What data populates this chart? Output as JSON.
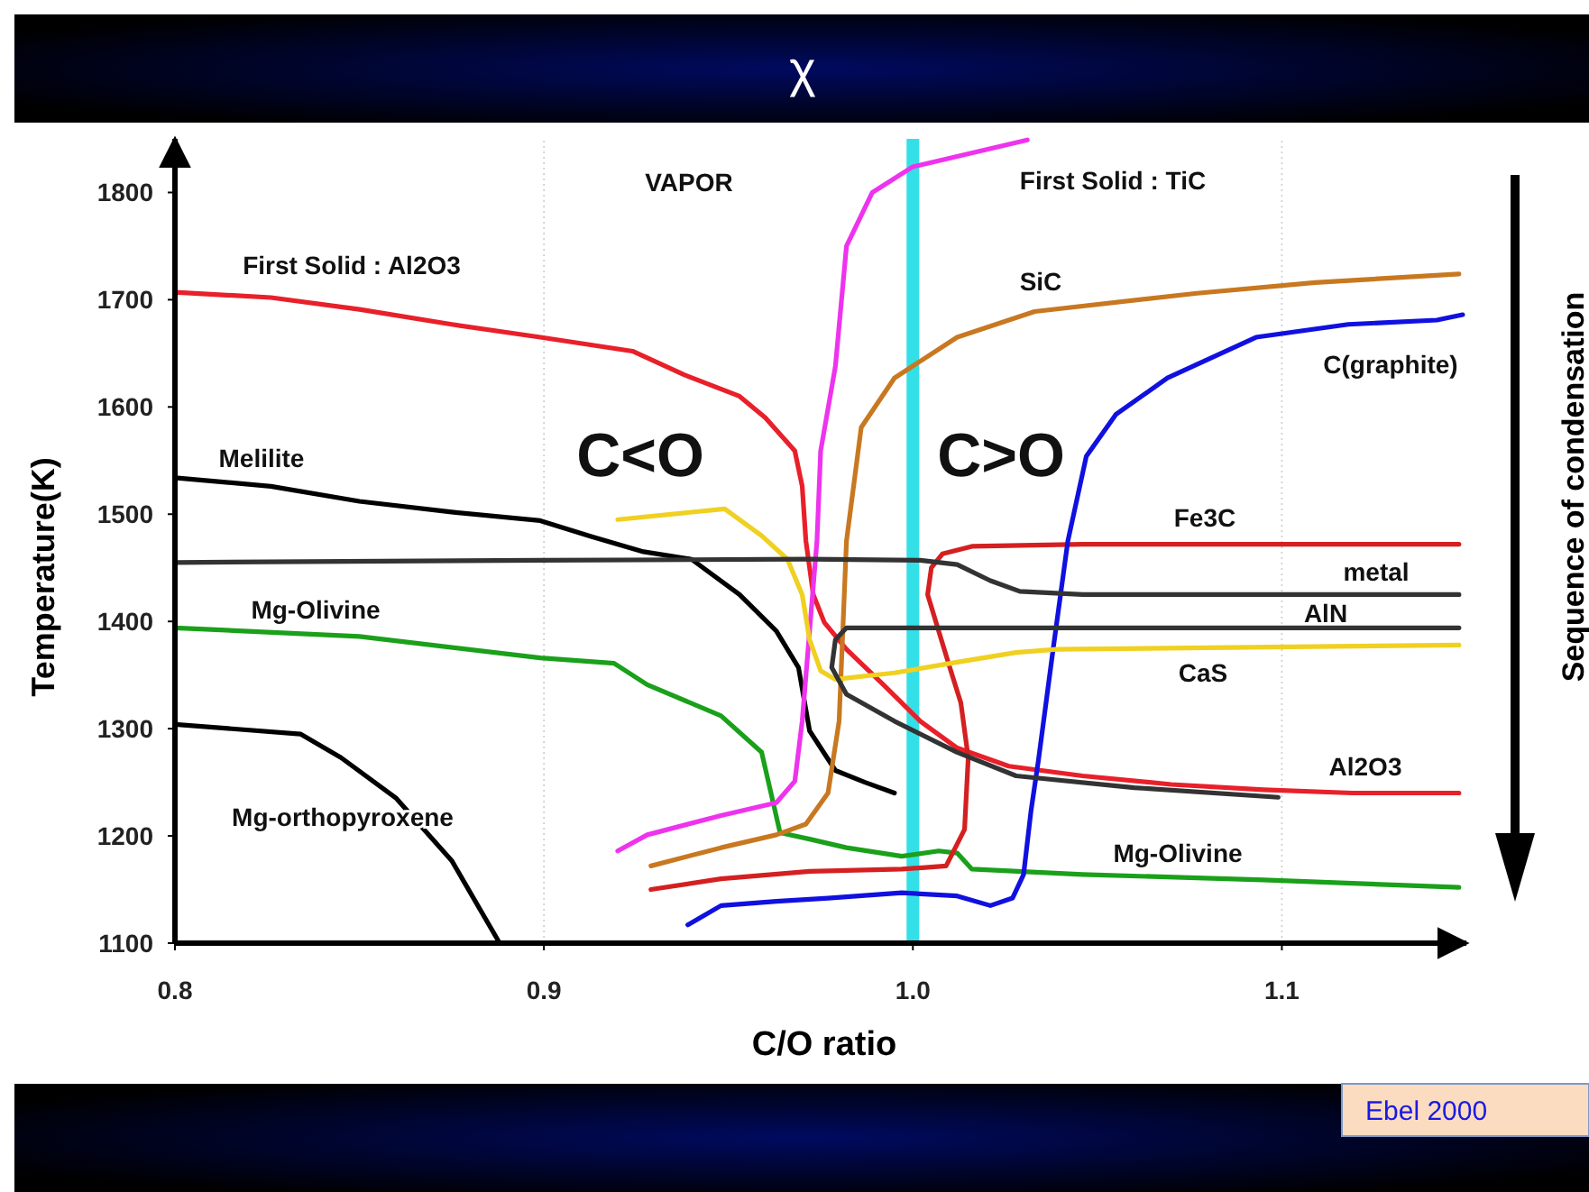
{
  "chart_data": {
    "type": "line",
    "title": "χ",
    "xlabel": "C/O ratio",
    "ylabel": "Temperature(K)",
    "xlim": [
      0.8,
      1.15
    ],
    "ylim": [
      1100,
      1850
    ],
    "xticks": [
      0.8,
      0.9,
      {
        "value": 1.0,
        "label": "1.0"
      },
      1.1
    ],
    "yticks": [
      1100,
      1200,
      1300,
      1400,
      1500,
      1600,
      1700,
      1800
    ],
    "grid": "x",
    "ref_lines": [
      {
        "axis": "x",
        "value": 1.0,
        "color": "#33e0e8"
      }
    ],
    "series": [
      {
        "color": "#e8202a",
        "x": [
          0.8,
          0.826,
          0.85,
          0.875,
          0.899,
          0.924,
          0.938,
          0.953,
          0.96,
          0.968,
          0.97,
          0.971,
          0.973,
          0.976,
          0.982,
          0.992,
          1.002,
          1.012,
          1.026,
          1.046,
          1.07,
          1.095,
          1.119,
          1.148
        ],
        "values": [
          1707,
          1702,
          1691,
          1677,
          1665,
          1652,
          1630,
          1610,
          1590,
          1559,
          1526,
          1475,
          1425,
          1399,
          1374,
          1341,
          1307,
          1282,
          1265,
          1256,
          1248,
          1243,
          1240,
          1240
        ]
      },
      {
        "color": "#000000",
        "x": [
          0.8,
          0.826,
          0.85,
          0.875,
          0.899,
          0.913,
          0.927,
          0.94,
          0.953,
          0.963,
          0.969,
          0.972,
          0.979,
          0.987,
          0.995
        ],
        "values": [
          1534,
          1526,
          1512,
          1502,
          1494,
          1479,
          1465,
          1458,
          1425,
          1391,
          1357,
          1298,
          1261,
          1250,
          1240
        ]
      },
      {
        "color": "#1aa01a",
        "x": [
          0.8,
          0.85,
          0.899,
          0.919,
          0.928,
          0.948,
          0.959,
          0.964,
          0.972,
          0.982,
          0.997,
          1.007,
          1.012,
          1.016,
          1.046,
          1.095,
          1.148
        ],
        "values": [
          1394,
          1386,
          1366,
          1361,
          1341,
          1312,
          1278,
          1203,
          1197,
          1189,
          1181,
          1186,
          1184,
          1169,
          1164,
          1159,
          1152
        ]
      },
      {
        "color": "#000000",
        "x": [
          0.8,
          0.834,
          0.845,
          0.86,
          0.875,
          0.888
        ],
        "values": [
          1304,
          1295,
          1273,
          1235,
          1177,
          1100
        ]
      },
      {
        "color": "#ee33ee",
        "x": [
          0.92,
          0.928,
          0.948,
          0.963,
          0.968,
          0.97,
          0.972,
          0.974,
          0.975,
          0.979,
          0.982,
          0.989,
          1.0,
          1.031
        ],
        "values": [
          1186,
          1201,
          1219,
          1231,
          1251,
          1307,
          1391,
          1475,
          1559,
          1638,
          1750,
          1800,
          1824,
          1849
        ]
      },
      {
        "color": "#c87820",
        "x": [
          0.929,
          0.948,
          0.963,
          0.971,
          0.977,
          0.98,
          0.981,
          0.982,
          0.986,
          0.995,
          1.012,
          1.033,
          1.077,
          1.109,
          1.148
        ],
        "values": [
          1172,
          1189,
          1201,
          1211,
          1240,
          1307,
          1391,
          1475,
          1581,
          1627,
          1665,
          1689,
          1706,
          1716,
          1724
        ]
      },
      {
        "color": "#d42020",
        "x": [
          0.929,
          0.948,
          0.972,
          0.997,
          1.009,
          1.014,
          1.015,
          1.013,
          1.01,
          1.007,
          1.004,
          1.005,
          1.008,
          1.016,
          1.046,
          1.148
        ],
        "values": [
          1150,
          1160,
          1167,
          1169,
          1172,
          1206,
          1273,
          1324,
          1357,
          1391,
          1425,
          1450,
          1463,
          1470,
          1472,
          1472
        ]
      },
      {
        "color": "#1010e0",
        "x": [
          0.939,
          0.948,
          0.963,
          0.977,
          0.997,
          1.012,
          1.021,
          1.027,
          1.03,
          1.032,
          1.034,
          1.038,
          1.042,
          1.047,
          1.055,
          1.069,
          1.093,
          1.118,
          1.142,
          1.149
        ],
        "values": [
          1117,
          1135,
          1139,
          1142,
          1147,
          1144,
          1135,
          1142,
          1164,
          1223,
          1270,
          1374,
          1475,
          1554,
          1593,
          1627,
          1665,
          1677,
          1681,
          1686
        ]
      },
      {
        "color": "#f0d020",
        "x": [
          0.92,
          0.949,
          0.959,
          0.966,
          0.97,
          0.972,
          0.975,
          0.979,
          0.995,
          1.012,
          1.028,
          1.039,
          1.148
        ],
        "values": [
          1495,
          1505,
          1480,
          1458,
          1425,
          1383,
          1354,
          1346,
          1352,
          1362,
          1371,
          1374,
          1378
        ]
      },
      {
        "color": "#333333",
        "x": [
          0.8,
          0.899,
          0.972,
          1.002,
          1.012,
          1.021,
          1.029,
          1.046,
          1.148
        ],
        "values": [
          1455,
          1457,
          1458,
          1457,
          1453,
          1438,
          1428,
          1425,
          1425
        ]
      },
      {
        "color": "#333333",
        "x": [
          1.099,
          1.06,
          1.028,
          1.012,
          0.995,
          0.982,
          0.978,
          0.979,
          0.982,
          1.021,
          1.148
        ],
        "values": [
          1236,
          1245,
          1256,
          1278,
          1307,
          1332,
          1357,
          1383,
          1394,
          1394,
          1394
        ]
      }
    ],
    "annotations": [
      "C<O",
      "C>O",
      "VAPOR",
      "First Solid : Al2O3",
      "Melilite",
      "Mg-Olivine",
      "Mg-orthopyroxene",
      "First Solid : TiC",
      "SiC",
      "C(graphite)",
      "Fe3C",
      "metal",
      "AlN",
      "CaS",
      "Al2O3",
      "Mg-Olivine",
      "Sequence of condensation",
      "Ebel 2000"
    ]
  }
}
